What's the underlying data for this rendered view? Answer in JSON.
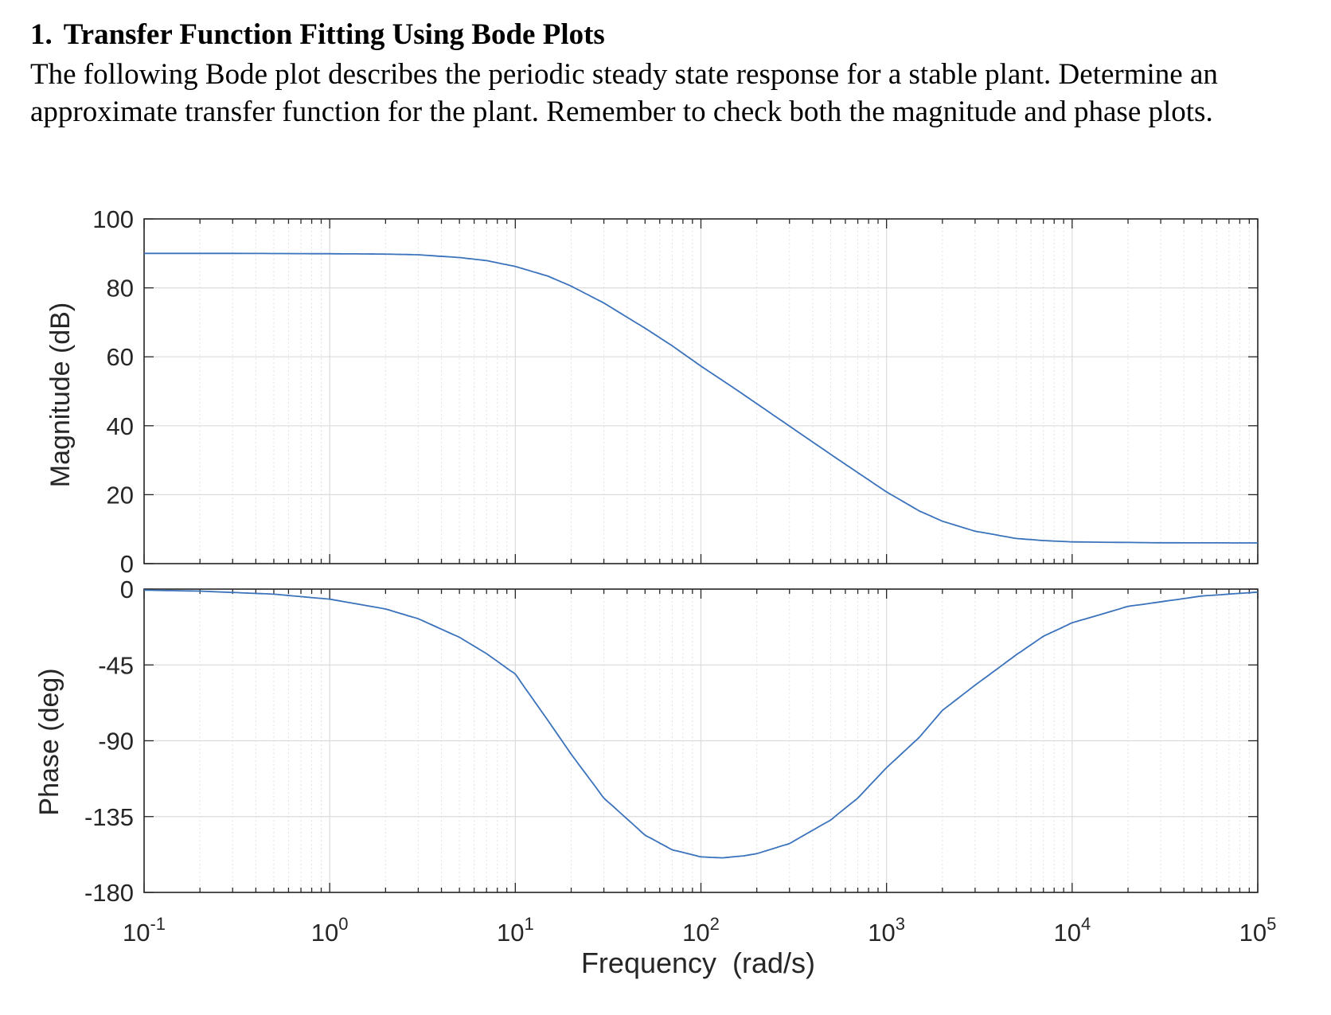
{
  "problem": {
    "number": "1.",
    "title": "Transfer Function Fitting Using Bode Plots",
    "text": "The following Bode plot describes the periodic steady state response for a stable plant. Determine an approximate transfer function for the plant. Remember to check both the magnitude and phase plots."
  },
  "chart_data": {
    "type": "line",
    "xlabel": "Frequency  (rad/s)",
    "x_scale": "log",
    "xlim": [
      0.1,
      100000
    ],
    "x_ticks": [
      {
        "value": 0.1,
        "base": "10",
        "exp": "-1"
      },
      {
        "value": 1,
        "base": "10",
        "exp": "0"
      },
      {
        "value": 10,
        "base": "10",
        "exp": "1"
      },
      {
        "value": 100,
        "base": "10",
        "exp": "2"
      },
      {
        "value": 1000,
        "base": "10",
        "exp": "3"
      },
      {
        "value": 10000,
        "base": "10",
        "exp": "4"
      },
      {
        "value": 100000,
        "base": "10",
        "exp": "5"
      }
    ],
    "grid": true,
    "color": "#3a72bb",
    "panels": [
      {
        "name": "magnitude",
        "ylabel": "Magnitude (dB)",
        "ylim": [
          0,
          100
        ],
        "yticks": [
          0,
          20,
          40,
          60,
          80,
          100
        ],
        "ytick_labels": [
          "0",
          "20",
          "40",
          "60",
          "80",
          "100"
        ],
        "x": [
          0.1,
          0.3,
          1,
          2,
          3,
          5,
          7,
          10,
          15,
          20,
          30,
          50,
          70,
          100,
          150,
          200,
          300,
          500,
          700,
          1000,
          1500,
          2000,
          3000,
          5000,
          7000,
          10000,
          30000,
          100000
        ],
        "y": [
          90,
          90,
          89.9,
          89.8,
          89.6,
          88.8,
          87.9,
          86.2,
          83.4,
          80.5,
          75.6,
          68.3,
          63.2,
          57.3,
          51.0,
          46.4,
          39.9,
          31.7,
          26.4,
          20.8,
          15.3,
          12.3,
          9.4,
          7.3,
          6.7,
          6.3,
          6.05,
          6.0
        ]
      },
      {
        "name": "phase",
        "ylabel": "Phase (deg)",
        "ylim": [
          -180,
          0
        ],
        "yticks": [
          -180,
          -135,
          -90,
          -45,
          0
        ],
        "ytick_labels": [
          "-180",
          "-135",
          "-90",
          "-45",
          "0"
        ],
        "x": [
          0.1,
          0.2,
          0.5,
          1,
          2,
          3,
          5,
          7,
          10,
          15,
          20,
          30,
          50,
          70,
          100,
          130,
          170,
          200,
          300,
          500,
          700,
          1000,
          1500,
          2000,
          3000,
          5000,
          7000,
          10000,
          20000,
          50000,
          100000
        ],
        "y": [
          -0.6,
          -1.2,
          -3.0,
          -6.0,
          -11.8,
          -17.6,
          -28.6,
          -38.3,
          -50.5,
          -78.0,
          -98.0,
          -124.0,
          -146.0,
          -154.7,
          -158.9,
          -159.5,
          -158.3,
          -157.0,
          -151.0,
          -137.0,
          -124.0,
          -106.0,
          -88.0,
          -72.0,
          -57.0,
          -39.0,
          -28.0,
          -20.0,
          -10.3,
          -4.1,
          -1.8
        ]
      }
    ]
  }
}
